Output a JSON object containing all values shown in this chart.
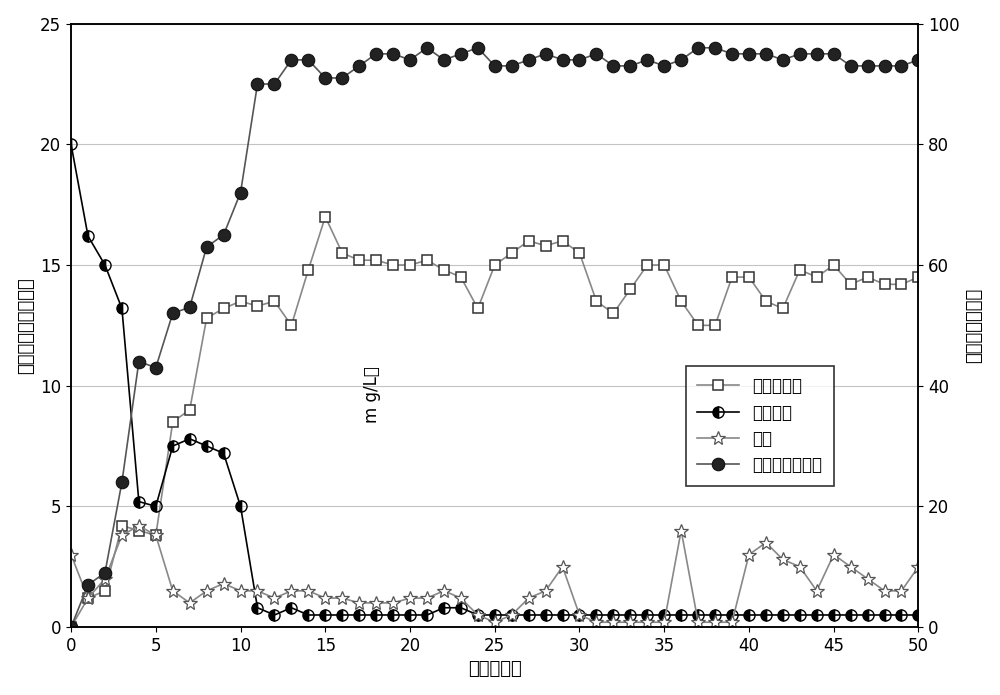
{
  "xlabel": "时间（天）",
  "ylabel_left": "出水氮化合物浓度（",
  "ylabel_right": "亚础酸盐积累率",
  "ylabel_unit_text": "m g/L）",
  "legend_nitrite": "亚础酸盐氮",
  "legend_nitrate": "础酸盐氮",
  "legend_ammonia": "氨氮",
  "legend_accumulation": "亚础酸盐积累率",
  "xlim": [
    0,
    50
  ],
  "ylim_left": [
    0,
    25
  ],
  "ylim_right": [
    0,
    100
  ],
  "yticks_left": [
    0,
    5,
    10,
    15,
    20,
    25
  ],
  "yticks_right": [
    0,
    20,
    40,
    60,
    80,
    100
  ],
  "xticks": [
    0,
    5,
    10,
    15,
    20,
    25,
    30,
    35,
    40,
    45,
    50
  ],
  "nitrite_x": [
    0,
    1,
    2,
    3,
    4,
    5,
    6,
    7,
    8,
    9,
    10,
    11,
    12,
    13,
    14,
    15,
    16,
    17,
    18,
    19,
    20,
    21,
    22,
    23,
    24,
    25,
    26,
    27,
    28,
    29,
    30,
    31,
    32,
    33,
    34,
    35,
    36,
    37,
    38,
    39,
    40,
    41,
    42,
    43,
    44,
    45,
    46,
    47,
    48,
    49,
    50
  ],
  "nitrite_y": [
    0,
    1.2,
    1.5,
    4.2,
    4.0,
    3.8,
    8.5,
    9.0,
    12.8,
    13.2,
    13.5,
    13.3,
    13.5,
    12.5,
    14.8,
    17.0,
    15.5,
    15.2,
    15.2,
    15.0,
    15.0,
    15.2,
    14.8,
    14.5,
    13.2,
    15.0,
    15.5,
    16.0,
    15.8,
    16.0,
    15.5,
    13.5,
    13.0,
    14.0,
    15.0,
    15.0,
    13.5,
    12.5,
    12.5,
    14.5,
    14.5,
    13.5,
    13.2,
    14.8,
    14.5,
    15.0,
    14.2,
    14.5,
    14.2,
    14.2,
    14.5
  ],
  "nitrate_x": [
    0,
    1,
    2,
    3,
    4,
    5,
    6,
    7,
    8,
    9,
    10,
    11,
    12,
    13,
    14,
    15,
    16,
    17,
    18,
    19,
    20,
    21,
    22,
    23,
    24,
    25,
    26,
    27,
    28,
    29,
    30,
    31,
    32,
    33,
    34,
    35,
    36,
    37,
    38,
    39,
    40,
    41,
    42,
    43,
    44,
    45,
    46,
    47,
    48,
    49,
    50
  ],
  "nitrate_y": [
    20,
    16.2,
    15.0,
    13.2,
    5.2,
    5.0,
    7.5,
    7.8,
    7.5,
    7.2,
    5.0,
    0.8,
    0.5,
    0.8,
    0.5,
    0.5,
    0.5,
    0.5,
    0.5,
    0.5,
    0.5,
    0.5,
    0.8,
    0.8,
    0.5,
    0.5,
    0.5,
    0.5,
    0.5,
    0.5,
    0.5,
    0.5,
    0.5,
    0.5,
    0.5,
    0.5,
    0.5,
    0.5,
    0.5,
    0.5,
    0.5,
    0.5,
    0.5,
    0.5,
    0.5,
    0.5,
    0.5,
    0.5,
    0.5,
    0.5,
    0.5
  ],
  "ammonia_x": [
    0,
    1,
    2,
    3,
    4,
    5,
    6,
    7,
    8,
    9,
    10,
    11,
    12,
    13,
    14,
    15,
    16,
    17,
    18,
    19,
    20,
    21,
    22,
    23,
    24,
    25,
    26,
    27,
    28,
    29,
    30,
    31,
    32,
    33,
    34,
    35,
    36,
    37,
    38,
    39,
    40,
    41,
    42,
    43,
    44,
    45,
    46,
    47,
    48,
    49,
    50
  ],
  "ammonia_y": [
    3.0,
    1.2,
    2.0,
    3.8,
    4.2,
    3.8,
    1.5,
    1.0,
    1.5,
    1.8,
    1.5,
    1.5,
    1.2,
    1.5,
    1.5,
    1.2,
    1.2,
    1.0,
    1.0,
    1.0,
    1.2,
    1.2,
    1.5,
    1.2,
    0.5,
    0.2,
    0.5,
    1.2,
    1.5,
    2.5,
    0.5,
    0.2,
    0.2,
    0.2,
    0.2,
    0.2,
    4.0,
    0.2,
    0.2,
    0.2,
    3.0,
    3.5,
    2.8,
    2.5,
    1.5,
    3.0,
    2.5,
    2.0,
    1.5,
    1.5,
    2.5
  ],
  "accumulation_x": [
    0,
    1,
    2,
    3,
    4,
    5,
    6,
    7,
    8,
    9,
    10,
    11,
    12,
    13,
    14,
    15,
    16,
    17,
    18,
    19,
    20,
    21,
    22,
    23,
    24,
    25,
    26,
    27,
    28,
    29,
    30,
    31,
    32,
    33,
    34,
    35,
    36,
    37,
    38,
    39,
    40,
    41,
    42,
    43,
    44,
    45,
    46,
    47,
    48,
    49,
    50
  ],
  "accumulation_y": [
    0,
    7,
    9,
    24,
    44,
    43,
    52,
    53,
    63,
    65,
    72,
    90,
    90,
    94,
    94,
    91,
    91,
    93,
    95,
    95,
    94,
    96,
    94,
    95,
    96,
    93,
    93,
    94,
    95,
    94,
    94,
    95,
    93,
    93,
    94,
    93,
    94,
    96,
    96,
    95,
    95,
    95,
    94,
    95,
    95,
    95,
    93,
    93,
    93,
    93,
    94
  ],
  "nitrite_line_color": "#888888",
  "nitrate_line_color": "#000000",
  "ammonia_line_color": "#888888",
  "accumulation_line_color": "#555555",
  "grid_color": "#aaaaaa",
  "background_color": "#ffffff",
  "legend_fontsize": 12,
  "axis_fontsize": 13,
  "tick_fontsize": 12
}
